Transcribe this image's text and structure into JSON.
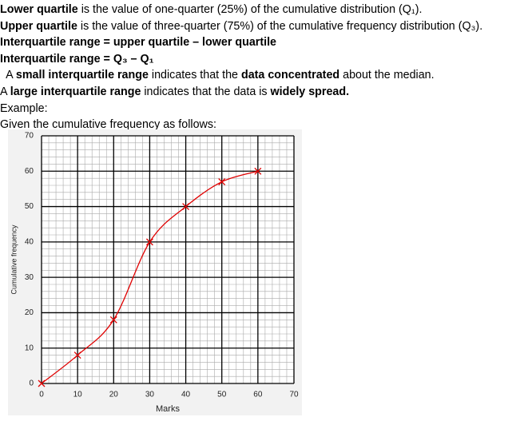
{
  "text": {
    "lines": [
      [
        {
          "text": "Lower quartile",
          "bold": true
        },
        {
          "text": " is the value of one-quarter (25%) of the cumulative distribution (Q₁).",
          "bold": false
        }
      ],
      [
        {
          "text": "Upper quartile",
          "bold": true
        },
        {
          "text": " is the value of three-quarter (75%) of the cumulative frequency distribution (Q₃).",
          "bold": false
        }
      ],
      [
        {
          "text": "Interquartile range = upper quartile – lower quartile",
          "bold": true
        }
      ],
      [
        {
          "text": "Interquartile range = Q₃ – Q₁",
          "bold": true
        }
      ],
      [
        {
          "text": "  A ",
          "bold": false
        },
        {
          "text": "small interquartile range",
          "bold": true
        },
        {
          "text": " indicates that the ",
          "bold": false
        },
        {
          "text": "data concentrated",
          "bold": true
        },
        {
          "text": " about the median.",
          "bold": false
        }
      ],
      [
        {
          "text": "A ",
          "bold": false
        },
        {
          "text": "large interquartile range",
          "bold": true
        },
        {
          "text": " indicates that the data is ",
          "bold": false
        },
        {
          "text": "widely spread.",
          "bold": true
        }
      ],
      [
        {
          "text": "Example:",
          "bold": false
        }
      ],
      [
        {
          "text": "Given the cumulative frequency as follows:",
          "bold": false
        }
      ]
    ]
  },
  "chart_data": {
    "type": "line",
    "x_label": "Marks",
    "y_label": "Cumulative frequency",
    "x": [
      0,
      10,
      20,
      30,
      40,
      50,
      60
    ],
    "values": [
      0,
      8,
      18,
      40,
      50,
      57,
      60
    ],
    "color": "#e00000",
    "xlim": [
      0,
      70
    ],
    "ylim": [
      0,
      70
    ],
    "xticks": [
      0,
      10,
      20,
      30,
      40,
      50,
      60,
      70
    ],
    "yticks": [
      0,
      10,
      20,
      30,
      40,
      50,
      60,
      70
    ],
    "grid": true
  }
}
